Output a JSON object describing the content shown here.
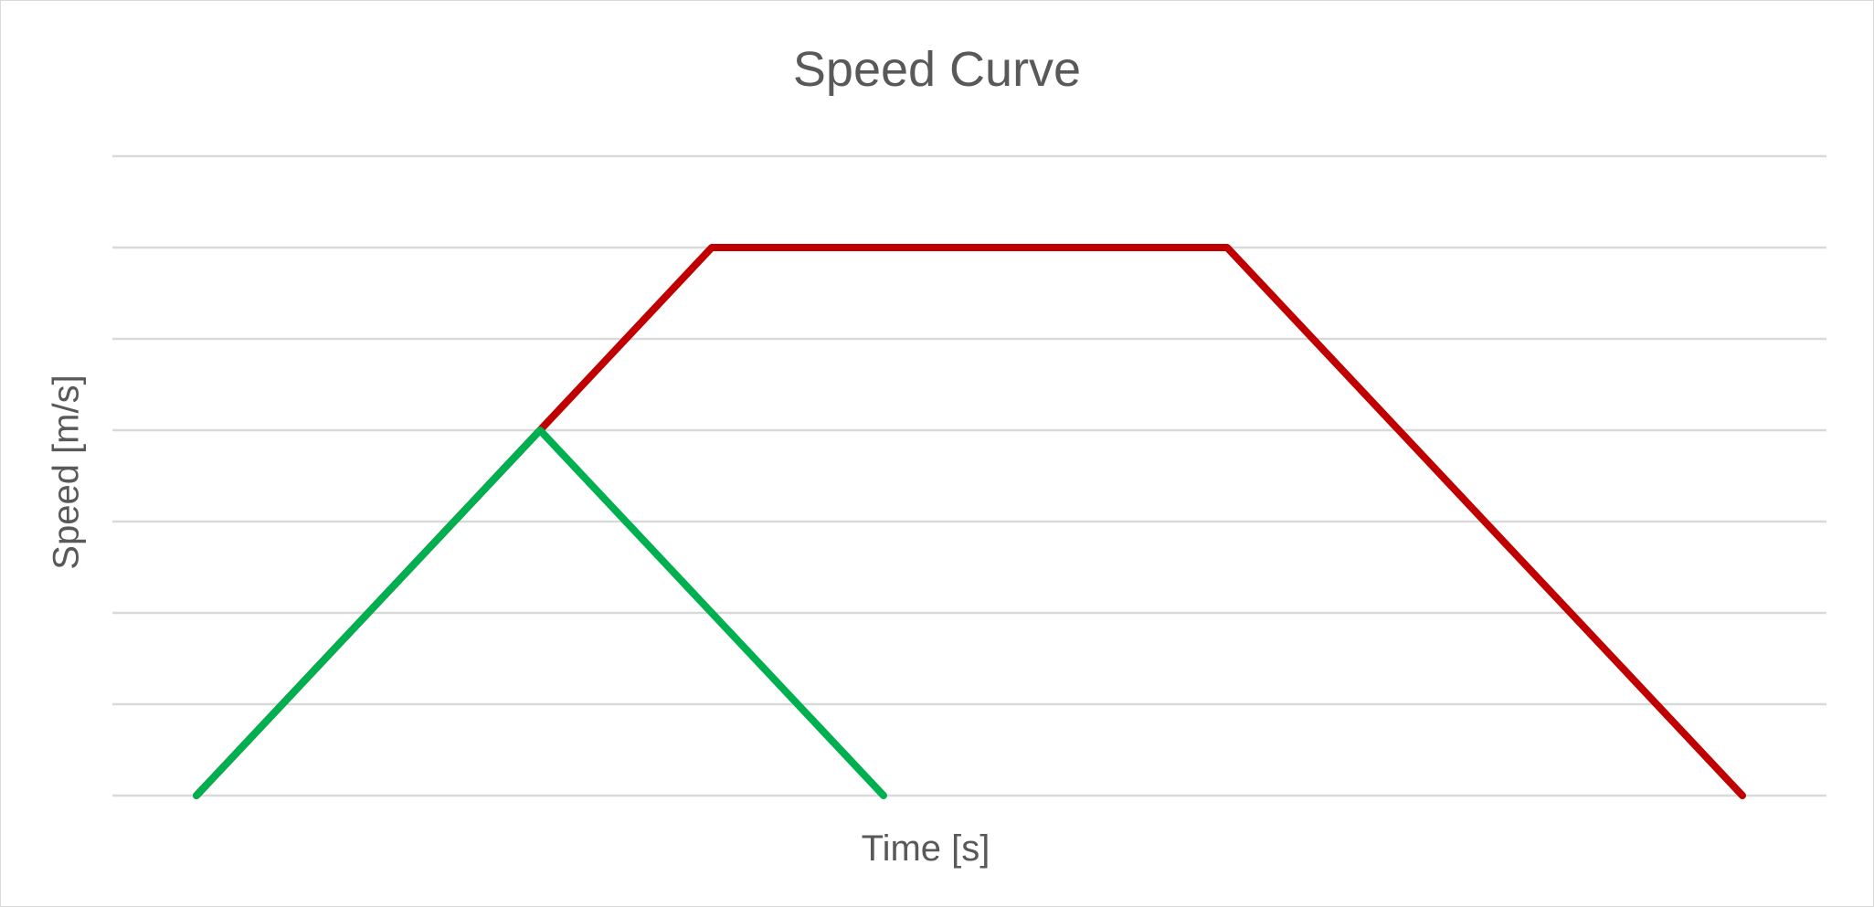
{
  "chart_data": {
    "type": "line",
    "title": "Speed Curve",
    "xlabel": "Time [s]",
    "ylabel": "Speed [m/s]",
    "xlim": [
      0,
      20
    ],
    "ylim": [
      0,
      7
    ],
    "grid": true,
    "legend": "none",
    "series": [
      {
        "color": "#c00000",
        "points": [
          [
            0,
            0
          ],
          [
            6,
            6
          ],
          [
            12,
            6
          ],
          [
            18,
            0
          ]
        ]
      },
      {
        "color": "#00b050",
        "points": [
          [
            0,
            0
          ],
          [
            4,
            4
          ],
          [
            8,
            0
          ]
        ]
      }
    ]
  }
}
